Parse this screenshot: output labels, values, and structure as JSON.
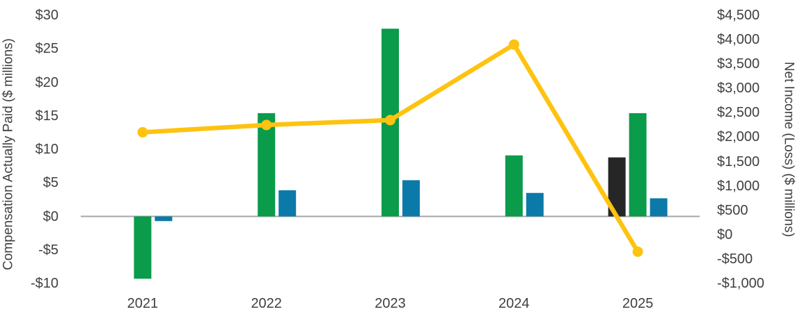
{
  "chart_data": {
    "type": "bar",
    "subtype": "dual-axis-bar-and-line",
    "title": "",
    "categories": [
      "2021",
      "2022",
      "2023",
      "2024",
      "2025"
    ],
    "series": [
      {
        "name": "black bars",
        "type": "bar",
        "axis": "left",
        "color": "#262626",
        "values": [
          null,
          null,
          null,
          null,
          8.8
        ]
      },
      {
        "name": "green bars",
        "type": "bar",
        "axis": "left",
        "color": "#0a9b4b",
        "values": [
          -9.3,
          15.4,
          28.0,
          9.1,
          15.4
        ]
      },
      {
        "name": "blue bars",
        "type": "bar",
        "axis": "left",
        "color": "#0b7aa9",
        "values": [
          -0.7,
          3.9,
          5.4,
          3.5,
          2.7
        ]
      },
      {
        "name": "yellow net income line",
        "type": "line",
        "axis": "right",
        "color": "#fec310",
        "values": [
          2100,
          2250,
          2350,
          3900,
          -350
        ]
      }
    ],
    "left_axis": {
      "title": "Compensation Actually Paid ($ millions)",
      "min": -10,
      "max": 30,
      "step": 5,
      "tick_labels": [
        "$30",
        "$25",
        "$20",
        "$15",
        "$10",
        "$5",
        "$0",
        "-$5",
        "-$10"
      ]
    },
    "right_axis": {
      "title": "Net Income (Loss) ($ millions)",
      "min": -1000,
      "max": 4500,
      "step": 500,
      "tick_labels": [
        "$4,500",
        "$4,000",
        "$3,500",
        "$3,000",
        "$2,500",
        "$2,000",
        "$1,500",
        "$1,000",
        "$500",
        "$0",
        "-$500",
        "-$1,000"
      ]
    },
    "x_axis": {
      "tick_labels": [
        "2021",
        "2022",
        "2023",
        "2024",
        "2025"
      ]
    },
    "legend": "none",
    "grid": "off",
    "axis_line_color": "#a6a6a6",
    "text_color": "#3f3f3f",
    "background": "#ffffff"
  }
}
